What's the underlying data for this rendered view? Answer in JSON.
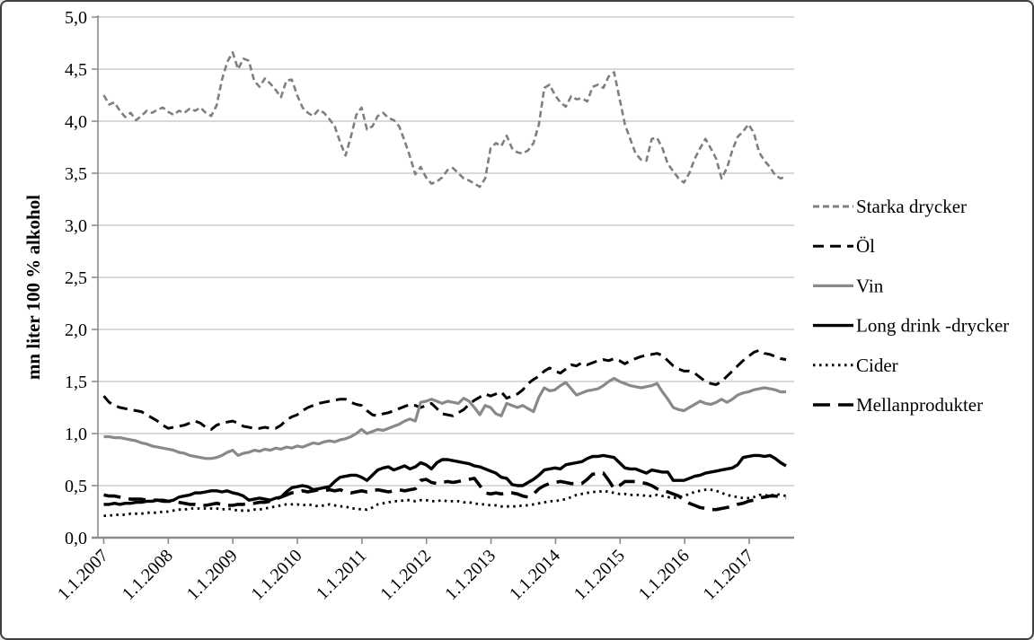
{
  "figure": {
    "background": "#ffffff",
    "border_color": "#3f3f3f",
    "gridline_color": "#b3b3b3",
    "axis_color": "#8c8c8c"
  },
  "chart_data": {
    "type": "line",
    "title": "",
    "xlabel": "",
    "ylabel": "mn liter 100 % alkohol",
    "ylim": [
      0,
      5
    ],
    "y_gridline_step": 0.5,
    "grid": true,
    "legend_position": "right",
    "x_unit": "month",
    "points_per_year": 12,
    "x_range_note": "monthly values Jan 2007 - Aug 2017",
    "x_tick_labels": [
      "1.1.2007",
      "1.1.2008",
      "1.1.2009",
      "1.1.2010",
      "1.1.2011",
      "1.1.2012",
      "1.1.2013",
      "1.1.2014",
      "1.1.2015",
      "1.1.2016",
      "1.1.2017"
    ],
    "y_tick_labels": [
      "0,0",
      "0,5",
      "1,0",
      "1,5",
      "2,0",
      "2,5",
      "3,0",
      "3,5",
      "4,0",
      "4,5",
      "5,0"
    ],
    "series": [
      {
        "name": "Starka drycker",
        "color": "#7f7f7f",
        "style": "dashed-short",
        "width": 2.6,
        "values": [
          4.25,
          4.16,
          4.18,
          4.1,
          4.04,
          4.08,
          4.01,
          4.05,
          4.1,
          4.08,
          4.11,
          4.13,
          4.09,
          4.06,
          4.1,
          4.08,
          4.12,
          4.1,
          4.13,
          4.08,
          4.05,
          4.15,
          4.4,
          4.57,
          4.66,
          4.5,
          4.6,
          4.58,
          4.39,
          4.33,
          4.41,
          4.36,
          4.3,
          4.23,
          4.39,
          4.4,
          4.25,
          4.13,
          4.08,
          4.05,
          4.11,
          4.08,
          4.02,
          3.95,
          3.8,
          3.67,
          3.85,
          4.06,
          4.13,
          3.92,
          3.95,
          4.05,
          4.08,
          4.03,
          4.01,
          3.95,
          3.81,
          3.66,
          3.49,
          3.56,
          3.46,
          3.4,
          3.42,
          3.46,
          3.53,
          3.55,
          3.5,
          3.45,
          3.43,
          3.4,
          3.37,
          3.45,
          3.74,
          3.79,
          3.76,
          3.86,
          3.74,
          3.7,
          3.69,
          3.72,
          3.79,
          3.97,
          4.32,
          4.35,
          4.25,
          4.18,
          4.14,
          4.24,
          4.21,
          4.22,
          4.19,
          4.33,
          4.35,
          4.32,
          4.43,
          4.47,
          4.22,
          3.97,
          3.83,
          3.69,
          3.63,
          3.62,
          3.83,
          3.84,
          3.74,
          3.59,
          3.52,
          3.45,
          3.41,
          3.5,
          3.64,
          3.74,
          3.83,
          3.74,
          3.64,
          3.45,
          3.55,
          3.72,
          3.85,
          3.9,
          3.97,
          3.89,
          3.7,
          3.62,
          3.56,
          3.48,
          3.45,
          3.47
        ]
      },
      {
        "name": "Öl",
        "color": "#000000",
        "style": "dashed-medium",
        "width": 3,
        "values": [
          1.36,
          1.3,
          1.27,
          1.25,
          1.24,
          1.23,
          1.22,
          1.21,
          1.18,
          1.15,
          1.12,
          1.08,
          1.05,
          1.06,
          1.07,
          1.08,
          1.1,
          1.12,
          1.1,
          1.06,
          1.04,
          1.08,
          1.1,
          1.11,
          1.12,
          1.1,
          1.07,
          1.06,
          1.05,
          1.05,
          1.06,
          1.05,
          1.05,
          1.08,
          1.13,
          1.16,
          1.18,
          1.22,
          1.25,
          1.27,
          1.29,
          1.3,
          1.31,
          1.32,
          1.33,
          1.33,
          1.3,
          1.28,
          1.27,
          1.22,
          1.18,
          1.17,
          1.19,
          1.2,
          1.22,
          1.24,
          1.26,
          1.28,
          1.27,
          1.25,
          1.27,
          1.29,
          1.24,
          1.19,
          1.18,
          1.17,
          1.2,
          1.23,
          1.28,
          1.32,
          1.35,
          1.38,
          1.36,
          1.38,
          1.4,
          1.34,
          1.36,
          1.38,
          1.42,
          1.48,
          1.52,
          1.55,
          1.6,
          1.63,
          1.6,
          1.58,
          1.62,
          1.66,
          1.65,
          1.68,
          1.66,
          1.68,
          1.7,
          1.71,
          1.7,
          1.72,
          1.7,
          1.67,
          1.7,
          1.72,
          1.74,
          1.75,
          1.76,
          1.77,
          1.75,
          1.7,
          1.65,
          1.62,
          1.6,
          1.6,
          1.58,
          1.54,
          1.5,
          1.48,
          1.47,
          1.5,
          1.55,
          1.6,
          1.65,
          1.7,
          1.74,
          1.78,
          1.8,
          1.77,
          1.76,
          1.74,
          1.72,
          1.71
        ]
      },
      {
        "name": "Vin",
        "color": "#898989",
        "style": "solid",
        "width": 3.2,
        "values": [
          0.97,
          0.97,
          0.96,
          0.96,
          0.95,
          0.94,
          0.93,
          0.91,
          0.9,
          0.88,
          0.87,
          0.86,
          0.85,
          0.84,
          0.82,
          0.81,
          0.79,
          0.78,
          0.77,
          0.76,
          0.76,
          0.77,
          0.79,
          0.82,
          0.84,
          0.79,
          0.81,
          0.82,
          0.84,
          0.83,
          0.85,
          0.84,
          0.86,
          0.85,
          0.87,
          0.86,
          0.88,
          0.87,
          0.89,
          0.91,
          0.9,
          0.92,
          0.93,
          0.92,
          0.94,
          0.95,
          0.97,
          1.0,
          1.04,
          1.0,
          1.02,
          1.04,
          1.03,
          1.05,
          1.07,
          1.09,
          1.12,
          1.14,
          1.12,
          1.3,
          1.31,
          1.33,
          1.31,
          1.29,
          1.31,
          1.3,
          1.29,
          1.34,
          1.31,
          1.25,
          1.18,
          1.27,
          1.25,
          1.19,
          1.17,
          1.29,
          1.27,
          1.25,
          1.27,
          1.24,
          1.21,
          1.35,
          1.44,
          1.41,
          1.42,
          1.46,
          1.49,
          1.43,
          1.37,
          1.39,
          1.41,
          1.42,
          1.43,
          1.46,
          1.5,
          1.53,
          1.5,
          1.48,
          1.46,
          1.45,
          1.44,
          1.45,
          1.46,
          1.48,
          1.4,
          1.33,
          1.25,
          1.23,
          1.22,
          1.25,
          1.28,
          1.31,
          1.29,
          1.28,
          1.3,
          1.33,
          1.3,
          1.33,
          1.37,
          1.39,
          1.4,
          1.42,
          1.43,
          1.44,
          1.43,
          1.42,
          1.4,
          1.4
        ]
      },
      {
        "name": "Long drink -drycker",
        "color": "#000000",
        "style": "solid",
        "width": 3.4,
        "values": [
          0.32,
          0.32,
          0.33,
          0.32,
          0.33,
          0.33,
          0.34,
          0.34,
          0.35,
          0.35,
          0.36,
          0.36,
          0.35,
          0.36,
          0.39,
          0.4,
          0.41,
          0.43,
          0.43,
          0.44,
          0.45,
          0.45,
          0.44,
          0.45,
          0.43,
          0.42,
          0.4,
          0.36,
          0.37,
          0.38,
          0.37,
          0.36,
          0.38,
          0.39,
          0.44,
          0.48,
          0.49,
          0.5,
          0.49,
          0.46,
          0.47,
          0.48,
          0.49,
          0.54,
          0.58,
          0.59,
          0.6,
          0.6,
          0.58,
          0.55,
          0.6,
          0.65,
          0.67,
          0.68,
          0.65,
          0.67,
          0.69,
          0.66,
          0.68,
          0.72,
          0.7,
          0.66,
          0.72,
          0.75,
          0.75,
          0.74,
          0.73,
          0.72,
          0.71,
          0.69,
          0.68,
          0.66,
          0.64,
          0.62,
          0.58,
          0.57,
          0.51,
          0.5,
          0.5,
          0.53,
          0.56,
          0.6,
          0.65,
          0.66,
          0.67,
          0.66,
          0.7,
          0.71,
          0.72,
          0.73,
          0.76,
          0.78,
          0.78,
          0.79,
          0.78,
          0.77,
          0.72,
          0.67,
          0.66,
          0.66,
          0.64,
          0.62,
          0.65,
          0.64,
          0.63,
          0.63,
          0.55,
          0.55,
          0.55,
          0.57,
          0.59,
          0.6,
          0.62,
          0.63,
          0.64,
          0.65,
          0.66,
          0.67,
          0.7,
          0.77,
          0.78,
          0.79,
          0.79,
          0.78,
          0.79,
          0.76,
          0.72,
          0.69
        ]
      },
      {
        "name": "Cider",
        "color": "#000000",
        "style": "dotted",
        "width": 2.8,
        "values": [
          0.21,
          0.21,
          0.22,
          0.22,
          0.22,
          0.23,
          0.23,
          0.23,
          0.24,
          0.24,
          0.24,
          0.25,
          0.25,
          0.26,
          0.27,
          0.27,
          0.28,
          0.28,
          0.28,
          0.28,
          0.28,
          0.28,
          0.27,
          0.28,
          0.27,
          0.26,
          0.26,
          0.26,
          0.27,
          0.27,
          0.28,
          0.29,
          0.3,
          0.31,
          0.32,
          0.32,
          0.32,
          0.31,
          0.32,
          0.31,
          0.3,
          0.31,
          0.32,
          0.31,
          0.3,
          0.3,
          0.28,
          0.28,
          0.27,
          0.27,
          0.29,
          0.32,
          0.33,
          0.34,
          0.35,
          0.35,
          0.36,
          0.36,
          0.35,
          0.36,
          0.36,
          0.35,
          0.35,
          0.36,
          0.35,
          0.35,
          0.35,
          0.34,
          0.34,
          0.33,
          0.32,
          0.32,
          0.31,
          0.31,
          0.3,
          0.3,
          0.3,
          0.3,
          0.31,
          0.31,
          0.32,
          0.33,
          0.34,
          0.35,
          0.35,
          0.36,
          0.37,
          0.39,
          0.41,
          0.42,
          0.43,
          0.44,
          0.44,
          0.45,
          0.44,
          0.43,
          0.42,
          0.42,
          0.41,
          0.41,
          0.41,
          0.4,
          0.4,
          0.41,
          0.4,
          0.39,
          0.38,
          0.39,
          0.4,
          0.42,
          0.44,
          0.45,
          0.46,
          0.46,
          0.45,
          0.43,
          0.41,
          0.4,
          0.39,
          0.38,
          0.38,
          0.39,
          0.41,
          0.41,
          0.4,
          0.42,
          0.41,
          0.4
        ]
      },
      {
        "name": "Mellanprodukter",
        "color": "#000000",
        "style": "dashed-long",
        "width": 3.6,
        "values": [
          0.41,
          0.4,
          0.4,
          0.39,
          0.38,
          0.37,
          0.37,
          0.37,
          0.36,
          0.36,
          0.36,
          0.35,
          0.35,
          0.35,
          0.34,
          0.33,
          0.32,
          0.32,
          0.31,
          0.31,
          0.32,
          0.33,
          0.32,
          0.31,
          0.31,
          0.32,
          0.32,
          0.33,
          0.33,
          0.34,
          0.34,
          0.35,
          0.37,
          0.39,
          0.41,
          0.43,
          0.44,
          0.45,
          0.44,
          0.45,
          0.46,
          0.45,
          0.46,
          0.45,
          0.46,
          0.44,
          0.43,
          0.44,
          0.45,
          0.44,
          0.45,
          0.46,
          0.45,
          0.44,
          0.45,
          0.46,
          0.45,
          0.46,
          0.47,
          0.55,
          0.56,
          0.53,
          0.52,
          0.53,
          0.54,
          0.53,
          0.54,
          0.55,
          0.56,
          0.57,
          0.5,
          0.43,
          0.42,
          0.43,
          0.42,
          0.43,
          0.43,
          0.42,
          0.4,
          0.39,
          0.42,
          0.47,
          0.5,
          0.52,
          0.53,
          0.54,
          0.53,
          0.52,
          0.52,
          0.52,
          0.56,
          0.61,
          0.61,
          0.62,
          0.55,
          0.47,
          0.5,
          0.54,
          0.54,
          0.54,
          0.53,
          0.52,
          0.5,
          0.47,
          0.45,
          0.44,
          0.42,
          0.4,
          0.36,
          0.33,
          0.31,
          0.29,
          0.28,
          0.27,
          0.27,
          0.28,
          0.29,
          0.3,
          0.32,
          0.33,
          0.35,
          0.36,
          0.38,
          0.39,
          0.4,
          0.4,
          0.39,
          0.38
        ]
      }
    ]
  }
}
